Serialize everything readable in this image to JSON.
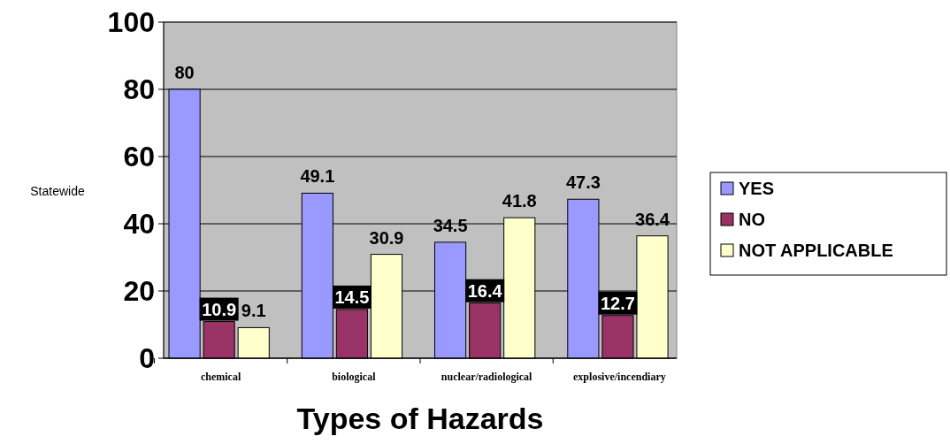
{
  "chart_data": {
    "type": "bar",
    "xlabel": "Types of Hazards",
    "ylabel": "Statewide",
    "categories": [
      "chemical",
      "biological",
      "nuclear/radiological",
      "explosive/incendiary"
    ],
    "series": [
      {
        "name": "YES",
        "color": "#9999ff",
        "values": [
          80,
          49.1,
          34.5,
          47.3
        ]
      },
      {
        "name": "NO",
        "color": "#993366",
        "values": [
          10.9,
          14.5,
          16.4,
          12.7
        ]
      },
      {
        "name": "NOT APPLICABLE",
        "color": "#ffffcc",
        "values": [
          9.1,
          30.9,
          41.8,
          36.4
        ]
      }
    ],
    "ylim": [
      0,
      100
    ],
    "yticks": [
      0,
      20,
      40,
      60,
      80,
      100
    ],
    "grid": "y",
    "legend": "right",
    "data_labels": true
  }
}
